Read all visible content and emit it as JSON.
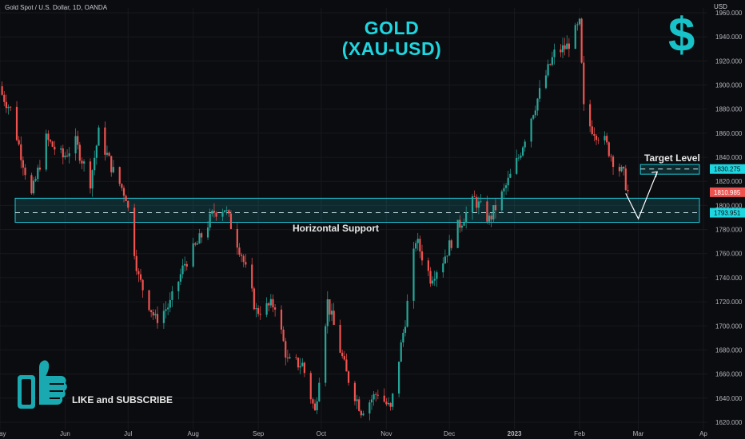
{
  "header": {
    "ticker": "Gold Spot / U.S. Dollar, 1D, OANDA",
    "currency": "USD"
  },
  "overlay": {
    "title_line1": "GOLD",
    "title_line2": "(XAU-USD)",
    "dollar_sign": "$",
    "cta": "LIKE and SUBSCRIBE",
    "cta_icon": "thumbs-up-icon"
  },
  "chart_data": {
    "type": "candlestick",
    "y_ticks": [
      1620,
      1640,
      1660,
      1680,
      1700,
      1720,
      1740,
      1760,
      1780,
      1800,
      1820,
      1840,
      1860,
      1880,
      1900,
      1920,
      1940,
      1960
    ],
    "y_tick_labels": [
      "1620.000",
      "1640.000",
      "1660.000",
      "1680.000",
      "1700.000",
      "1720.000",
      "1740.000",
      "1760.000",
      "1780.000",
      "1800.000",
      "1820.000",
      "1840.000",
      "1860.000",
      "1880.000",
      "1900.000",
      "1920.000",
      "1940.000",
      "1960.000"
    ],
    "ylim": [
      1614,
      1964
    ],
    "x_labels": [
      "May",
      "Jun",
      "Jul",
      "Aug",
      "Sep",
      "Oct",
      "Nov",
      "Dec",
      "2023",
      "Feb",
      "Mar",
      "Ap"
    ],
    "x_label_dates": [
      "2022-05-01",
      "2022-06-01",
      "2022-07-01",
      "2022-08-01",
      "2022-09-01",
      "2022-10-01",
      "2022-11-01",
      "2022-12-01",
      "2023-01-01",
      "2023-02-01",
      "2023-03-01",
      "2023-04-01"
    ],
    "last_price": "1810.985",
    "last_price_value": 1810.985,
    "support": {
      "label": "Horizontal Support",
      "low": 1786,
      "high": 1806,
      "level": 1793.951,
      "level_label": "1793.951"
    },
    "target": {
      "label": "Target Level",
      "low": 1826,
      "high": 1834,
      "level": 1830.275,
      "level_label": "1830.275"
    },
    "projection": {
      "points": [
        [
          "2023-02-23",
          1810
        ],
        [
          "2023-03-01",
          1789
        ],
        [
          "2023-03-10",
          1828
        ]
      ]
    },
    "anchors": [
      [
        "2022-05-01",
        1895
      ],
      [
        "2022-05-06",
        1880
      ],
      [
        "2022-05-10",
        1850
      ],
      [
        "2022-05-16",
        1808
      ],
      [
        "2022-05-23",
        1855
      ],
      [
        "2022-05-31",
        1840
      ],
      [
        "2022-06-06",
        1852
      ],
      [
        "2022-06-13",
        1820
      ],
      [
        "2022-06-17",
        1860
      ],
      [
        "2022-06-24",
        1828
      ],
      [
        "2022-06-30",
        1808
      ],
      [
        "2022-07-06",
        1740
      ],
      [
        "2022-07-14",
        1705
      ],
      [
        "2022-07-21",
        1718
      ],
      [
        "2022-07-28",
        1752
      ],
      [
        "2022-08-03",
        1768
      ],
      [
        "2022-08-11",
        1795
      ],
      [
        "2022-08-16",
        1798
      ],
      [
        "2022-08-24",
        1760
      ],
      [
        "2022-08-31",
        1712
      ],
      [
        "2022-09-09",
        1718
      ],
      [
        "2022-09-15",
        1670
      ],
      [
        "2022-09-22",
        1668
      ],
      [
        "2022-09-28",
        1628
      ],
      [
        "2022-10-04",
        1720
      ],
      [
        "2022-10-13",
        1660
      ],
      [
        "2022-10-20",
        1630
      ],
      [
        "2022-10-28",
        1645
      ],
      [
        "2022-11-03",
        1630
      ],
      [
        "2022-11-10",
        1705
      ],
      [
        "2022-11-15",
        1772
      ],
      [
        "2022-11-22",
        1740
      ],
      [
        "2022-11-28",
        1755
      ],
      [
        "2022-12-05",
        1782
      ],
      [
        "2022-12-13",
        1805
      ],
      [
        "2022-12-20",
        1788
      ],
      [
        "2022-12-27",
        1812
      ],
      [
        "2023-01-03",
        1840
      ],
      [
        "2023-01-09",
        1874
      ],
      [
        "2023-01-16",
        1908
      ],
      [
        "2023-01-20",
        1926
      ],
      [
        "2023-01-26",
        1932
      ],
      [
        "2023-02-01",
        1950
      ],
      [
        "2023-02-03",
        1880
      ],
      [
        "2023-02-06",
        1866
      ],
      [
        "2023-02-13",
        1853
      ],
      [
        "2023-02-17",
        1838
      ],
      [
        "2023-02-22",
        1825
      ],
      [
        "2023-02-24",
        1811
      ]
    ]
  }
}
